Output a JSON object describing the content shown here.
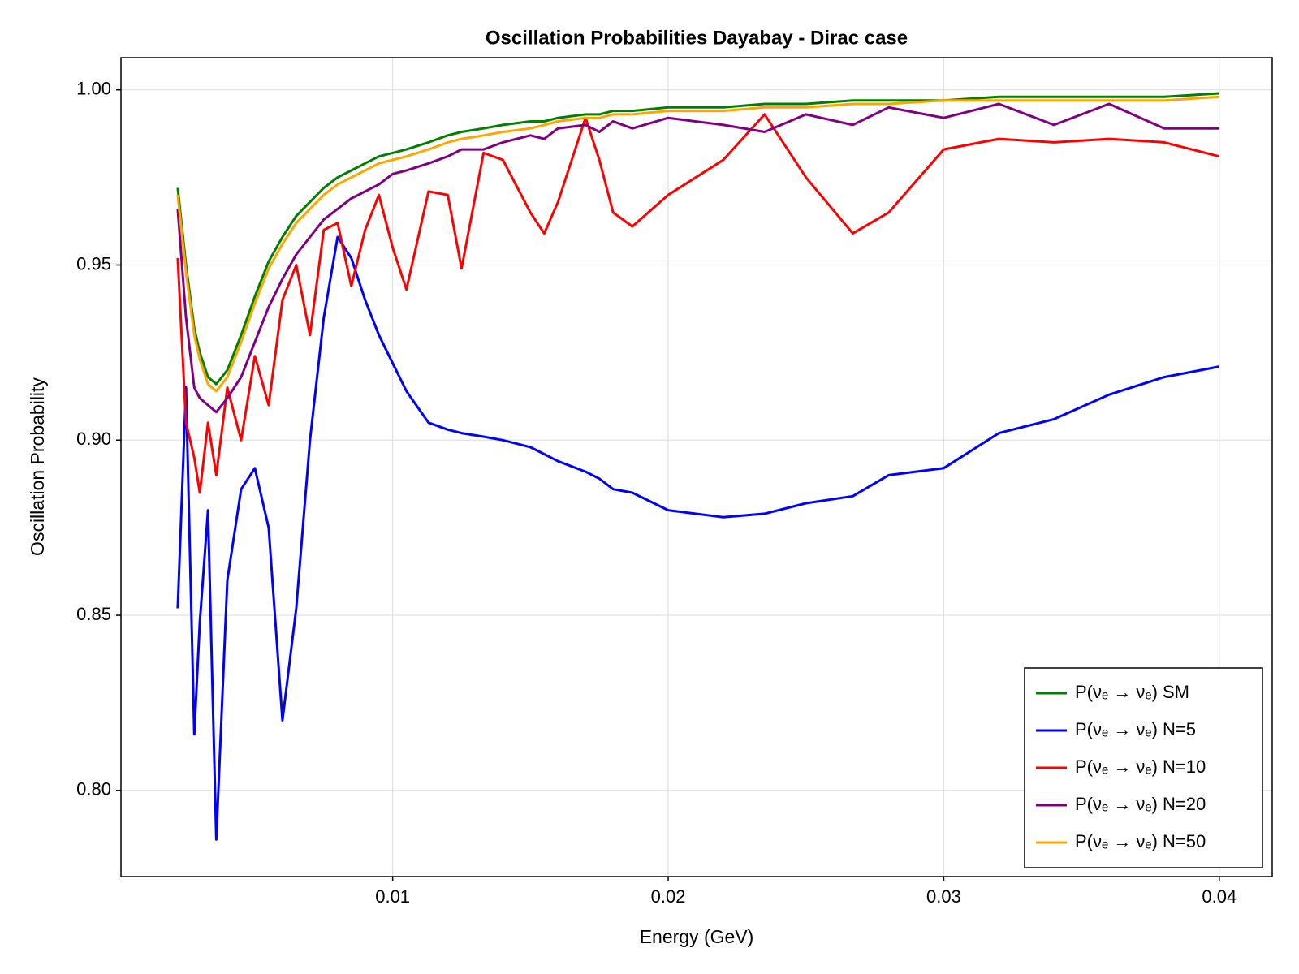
{
  "chart_data": {
    "type": "line",
    "title": "Oscillation Probabilities Dayabay - Dirac case",
    "x_label": "Energy (GeV)",
    "y_label": "Oscillation Probability",
    "x": [
      0.0022,
      0.0025,
      0.0028,
      0.003,
      0.0033,
      0.0036,
      0.004,
      0.0045,
      0.005,
      0.0055,
      0.006,
      0.0065,
      0.007,
      0.0075,
      0.008,
      0.0085,
      0.009,
      0.0095,
      0.01,
      0.0105,
      0.0113,
      0.012,
      0.0125,
      0.0133,
      0.014,
      0.015,
      0.0155,
      0.016,
      0.017,
      0.0175,
      0.018,
      0.0187,
      0.02,
      0.022,
      0.0235,
      0.025,
      0.0267,
      0.028,
      0.03,
      0.032,
      0.034,
      0.036,
      0.038,
      0.04
    ],
    "series": [
      {
        "name": "P(νₑ → νₑ) SM",
        "color": "#007f00",
        "values": [
          0.972,
          0.95,
          0.932,
          0.925,
          0.918,
          0.916,
          0.92,
          0.93,
          0.941,
          0.951,
          0.958,
          0.964,
          0.968,
          0.972,
          0.975,
          0.977,
          0.979,
          0.981,
          0.982,
          0.983,
          0.985,
          0.987,
          0.988,
          0.989,
          0.99,
          0.991,
          0.991,
          0.992,
          0.993,
          0.993,
          0.994,
          0.994,
          0.995,
          0.995,
          0.996,
          0.996,
          0.997,
          0.997,
          0.997,
          0.998,
          0.998,
          0.998,
          0.998,
          0.999
        ]
      },
      {
        "name": "P(νₑ → νₑ) N=5",
        "color": "#0000ff",
        "values": [
          0.852,
          0.915,
          0.816,
          0.848,
          0.88,
          0.786,
          0.86,
          0.886,
          0.892,
          0.875,
          0.82,
          0.852,
          0.9,
          0.935,
          0.958,
          0.952,
          0.94,
          0.93,
          0.922,
          0.914,
          0.905,
          0.903,
          0.902,
          0.901,
          0.9,
          0.898,
          0.896,
          0.894,
          0.891,
          0.889,
          0.886,
          0.885,
          0.88,
          0.878,
          0.879,
          0.882,
          0.884,
          0.89,
          0.892,
          0.902,
          0.906,
          0.913,
          0.918,
          0.921
        ]
      },
      {
        "name": "P(νₑ →  νₑ) N=10",
        "color": "#ff0000",
        "values": [
          0.952,
          0.905,
          0.895,
          0.885,
          0.905,
          0.89,
          0.915,
          0.9,
          0.924,
          0.91,
          0.94,
          0.95,
          0.93,
          0.96,
          0.962,
          0.944,
          0.96,
          0.97,
          0.955,
          0.943,
          0.971,
          0.97,
          0.949,
          0.982,
          0.98,
          0.965,
          0.959,
          0.968,
          0.992,
          0.98,
          0.965,
          0.961,
          0.97,
          0.98,
          0.993,
          0.975,
          0.959,
          0.965,
          0.983,
          0.986,
          0.985,
          0.986,
          0.985,
          0.981
        ]
      },
      {
        "name": "P(νₑ →  νₑ) N=20",
        "color": "#800080",
        "values": [
          0.966,
          0.935,
          0.915,
          0.912,
          0.91,
          0.908,
          0.912,
          0.918,
          0.928,
          0.938,
          0.946,
          0.953,
          0.958,
          0.963,
          0.966,
          0.969,
          0.971,
          0.973,
          0.976,
          0.977,
          0.979,
          0.981,
          0.983,
          0.983,
          0.985,
          0.987,
          0.986,
          0.989,
          0.99,
          0.988,
          0.991,
          0.989,
          0.992,
          0.99,
          0.988,
          0.993,
          0.99,
          0.995,
          0.992,
          0.996,
          0.99,
          0.996,
          0.989,
          0.989
        ]
      },
      {
        "name": "P(νₑ →  νₑ) N=50",
        "color": "#ffa500",
        "values": [
          0.97,
          0.948,
          0.93,
          0.923,
          0.916,
          0.914,
          0.918,
          0.928,
          0.939,
          0.949,
          0.956,
          0.962,
          0.966,
          0.97,
          0.973,
          0.975,
          0.977,
          0.979,
          0.98,
          0.981,
          0.983,
          0.985,
          0.986,
          0.987,
          0.988,
          0.989,
          0.99,
          0.991,
          0.992,
          0.992,
          0.993,
          0.993,
          0.994,
          0.994,
          0.995,
          0.995,
          0.996,
          0.996,
          0.997,
          0.997,
          0.997,
          0.997,
          0.997,
          0.998
        ]
      }
    ],
    "xlim": [
      0.00014,
      0.04192
    ],
    "ylim": [
      0.7754,
      1.0092
    ],
    "xticks": [
      0.01,
      0.02,
      0.03,
      0.04
    ],
    "yticks": [
      {
        "value": 0.8,
        "label": "0.80"
      },
      {
        "value": 0.85,
        "label": "0.85"
      },
      {
        "value": 0.9,
        "label": "0.90"
      },
      {
        "value": 0.95,
        "label": "0.95"
      },
      {
        "value": 1.0,
        "label": "1.00"
      }
    ],
    "grid": true,
    "legend": "lower right"
  }
}
